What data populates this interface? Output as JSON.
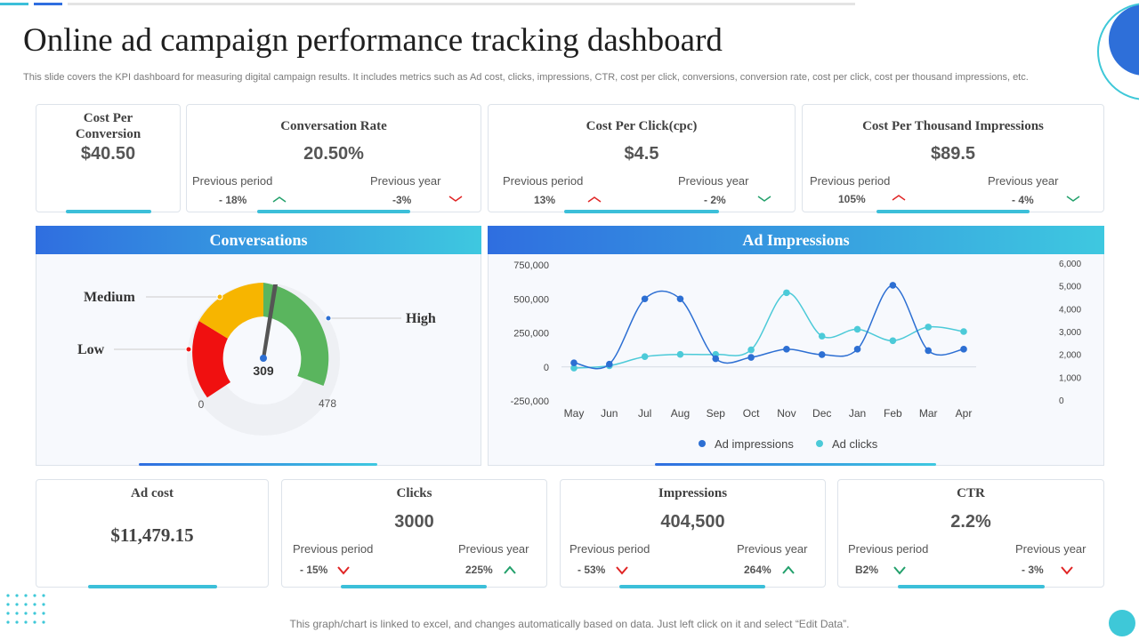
{
  "page": {
    "title": "Online ad campaign performance tracking dashboard",
    "description": "This slide covers the KPI dashboard for measuring digital campaign results. It includes metrics such as Ad cost, clicks, impressions, CTR, cost per click, conversions, conversion rate, cost per click, cost per thousand impressions, etc.",
    "footer": "This graph/chart is linked to excel,  and changes automatically based on data. Just left click on it and select “Edit Data”."
  },
  "kpis_top": [
    {
      "title": "Cost Per Conversion",
      "value": "$40.50"
    },
    {
      "title": "Conversation Rate",
      "value": "20.50%",
      "prev_period_label": "Previous  period",
      "prev_period_value": "- 18%",
      "prev_period_trend": "up",
      "prev_year_label": "Previous  year",
      "prev_year_value": "-3%",
      "prev_year_trend": "down"
    },
    {
      "title": "Cost Per Click(cpc)",
      "value": "$4.5",
      "prev_period_label": "Previous  period",
      "prev_period_value": "13%",
      "prev_period_trend": "down",
      "prev_year_label": "Previous  year",
      "prev_year_value": "- 2%",
      "prev_year_trend": "up"
    },
    {
      "title": "Cost Per Thousand Impressions",
      "value": "$89.5",
      "prev_period_label": "Previous  period",
      "prev_period_value": "105%",
      "prev_period_trend": "down",
      "prev_year_label": "Previous  year",
      "prev_year_value": "- 4%",
      "prev_year_trend": "up"
    }
  ],
  "conversations": {
    "title": "Conversations",
    "value": "309",
    "min": "0",
    "max": "478",
    "labels": {
      "low": "Low",
      "medium": "Medium",
      "high": "High"
    },
    "colors": {
      "low": "#f01010",
      "medium": "#f7b500",
      "high": "#5ab55e"
    }
  },
  "ad_impressions": {
    "title": "Ad Impressions",
    "legend": [
      "Ad impressions",
      "Ad clicks"
    ]
  },
  "kpis_bottom": [
    {
      "title": "Ad cost",
      "value": "$11,479.15"
    },
    {
      "title": "Clicks",
      "value": "3000",
      "prev_period_label": "Previous  period",
      "prev_period_value": "- 15%",
      "prev_period_trend": "down",
      "prev_year_label": "Previous  year",
      "prev_year_value": "225%",
      "prev_year_trend": "up"
    },
    {
      "title": "Impressions",
      "value": "404,500",
      "prev_period_label": "Previous  period",
      "prev_period_value": "- 53%",
      "prev_period_trend": "down",
      "prev_year_label": "Previous  year",
      "prev_year_value": "264%",
      "prev_year_trend": "up"
    },
    {
      "title": "CTR",
      "value": "2.2%",
      "prev_period_label": "Previous  period",
      "prev_period_value": "B2%",
      "prev_period_trend": "up",
      "prev_year_label": "Previous  year",
      "prev_year_value": "- 3%",
      "prev_year_trend": "down"
    }
  ],
  "colors": {
    "accent": "#3cbfd9",
    "blue": "#2f6ee0",
    "up": "#22a06b",
    "down": "#e02424",
    "series1": "#2d6fd3",
    "series2": "#4ccad8"
  },
  "chart_data": {
    "type": "line",
    "title": "Ad Impressions",
    "categories": [
      "May",
      "Jun",
      "Jul",
      "Aug",
      "Sep",
      "Oct",
      "Nov",
      "Dec",
      "Jan",
      "Feb",
      "Mar",
      "Apr"
    ],
    "series": [
      {
        "name": "Ad impressions",
        "axis": "left",
        "values": [
          30000,
          20000,
          500000,
          500000,
          60000,
          70000,
          130000,
          90000,
          130000,
          600000,
          120000,
          130000
        ]
      },
      {
        "name": "Ad clicks",
        "axis": "right",
        "values": [
          1400,
          1500,
          1900,
          2000,
          2000,
          2200,
          4700,
          2800,
          3100,
          2600,
          3200,
          3000
        ]
      }
    ],
    "y_left": {
      "min": -250000,
      "max": 750000,
      "ticks": [
        "750,000",
        "500,000",
        "250,000",
        "0",
        "-250,000"
      ]
    },
    "y_right": {
      "min": 0,
      "max": 6000,
      "ticks": [
        "6,000",
        "5,000",
        "4,000",
        "3,000",
        "2,000",
        "1,000",
        "0"
      ]
    },
    "legend_position": "bottom",
    "smooth": true
  }
}
